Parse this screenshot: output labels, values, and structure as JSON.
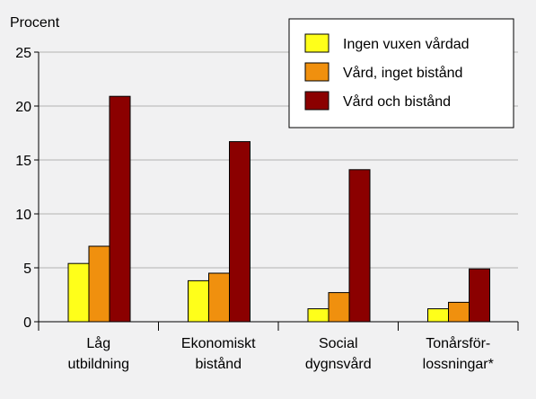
{
  "chart_data": {
    "type": "bar",
    "title": "",
    "ylabel": "Procent",
    "xlabel": "",
    "ylim": [
      0,
      25
    ],
    "yticks": [
      0,
      5,
      10,
      15,
      20,
      25
    ],
    "grid": true,
    "legend_position": "top-right",
    "categories": [
      [
        "Låg",
        "utbildning"
      ],
      [
        "Ekonomiskt",
        "bistånd"
      ],
      [
        "Social",
        "dygnsvård"
      ],
      [
        "Tonårsför-",
        "lossningar*"
      ]
    ],
    "series": [
      {
        "name": "Ingen vuxen vårdad",
        "color": "#ffff1a",
        "values": [
          5.4,
          3.8,
          1.2,
          1.2
        ]
      },
      {
        "name": "Vård, inget bistånd",
        "color": "#f0900e",
        "values": [
          7.0,
          4.5,
          2.7,
          1.8
        ]
      },
      {
        "name": "Vård och bistånd",
        "color": "#8b0000",
        "values": [
          20.9,
          16.7,
          14.1,
          4.9
        ]
      }
    ]
  }
}
